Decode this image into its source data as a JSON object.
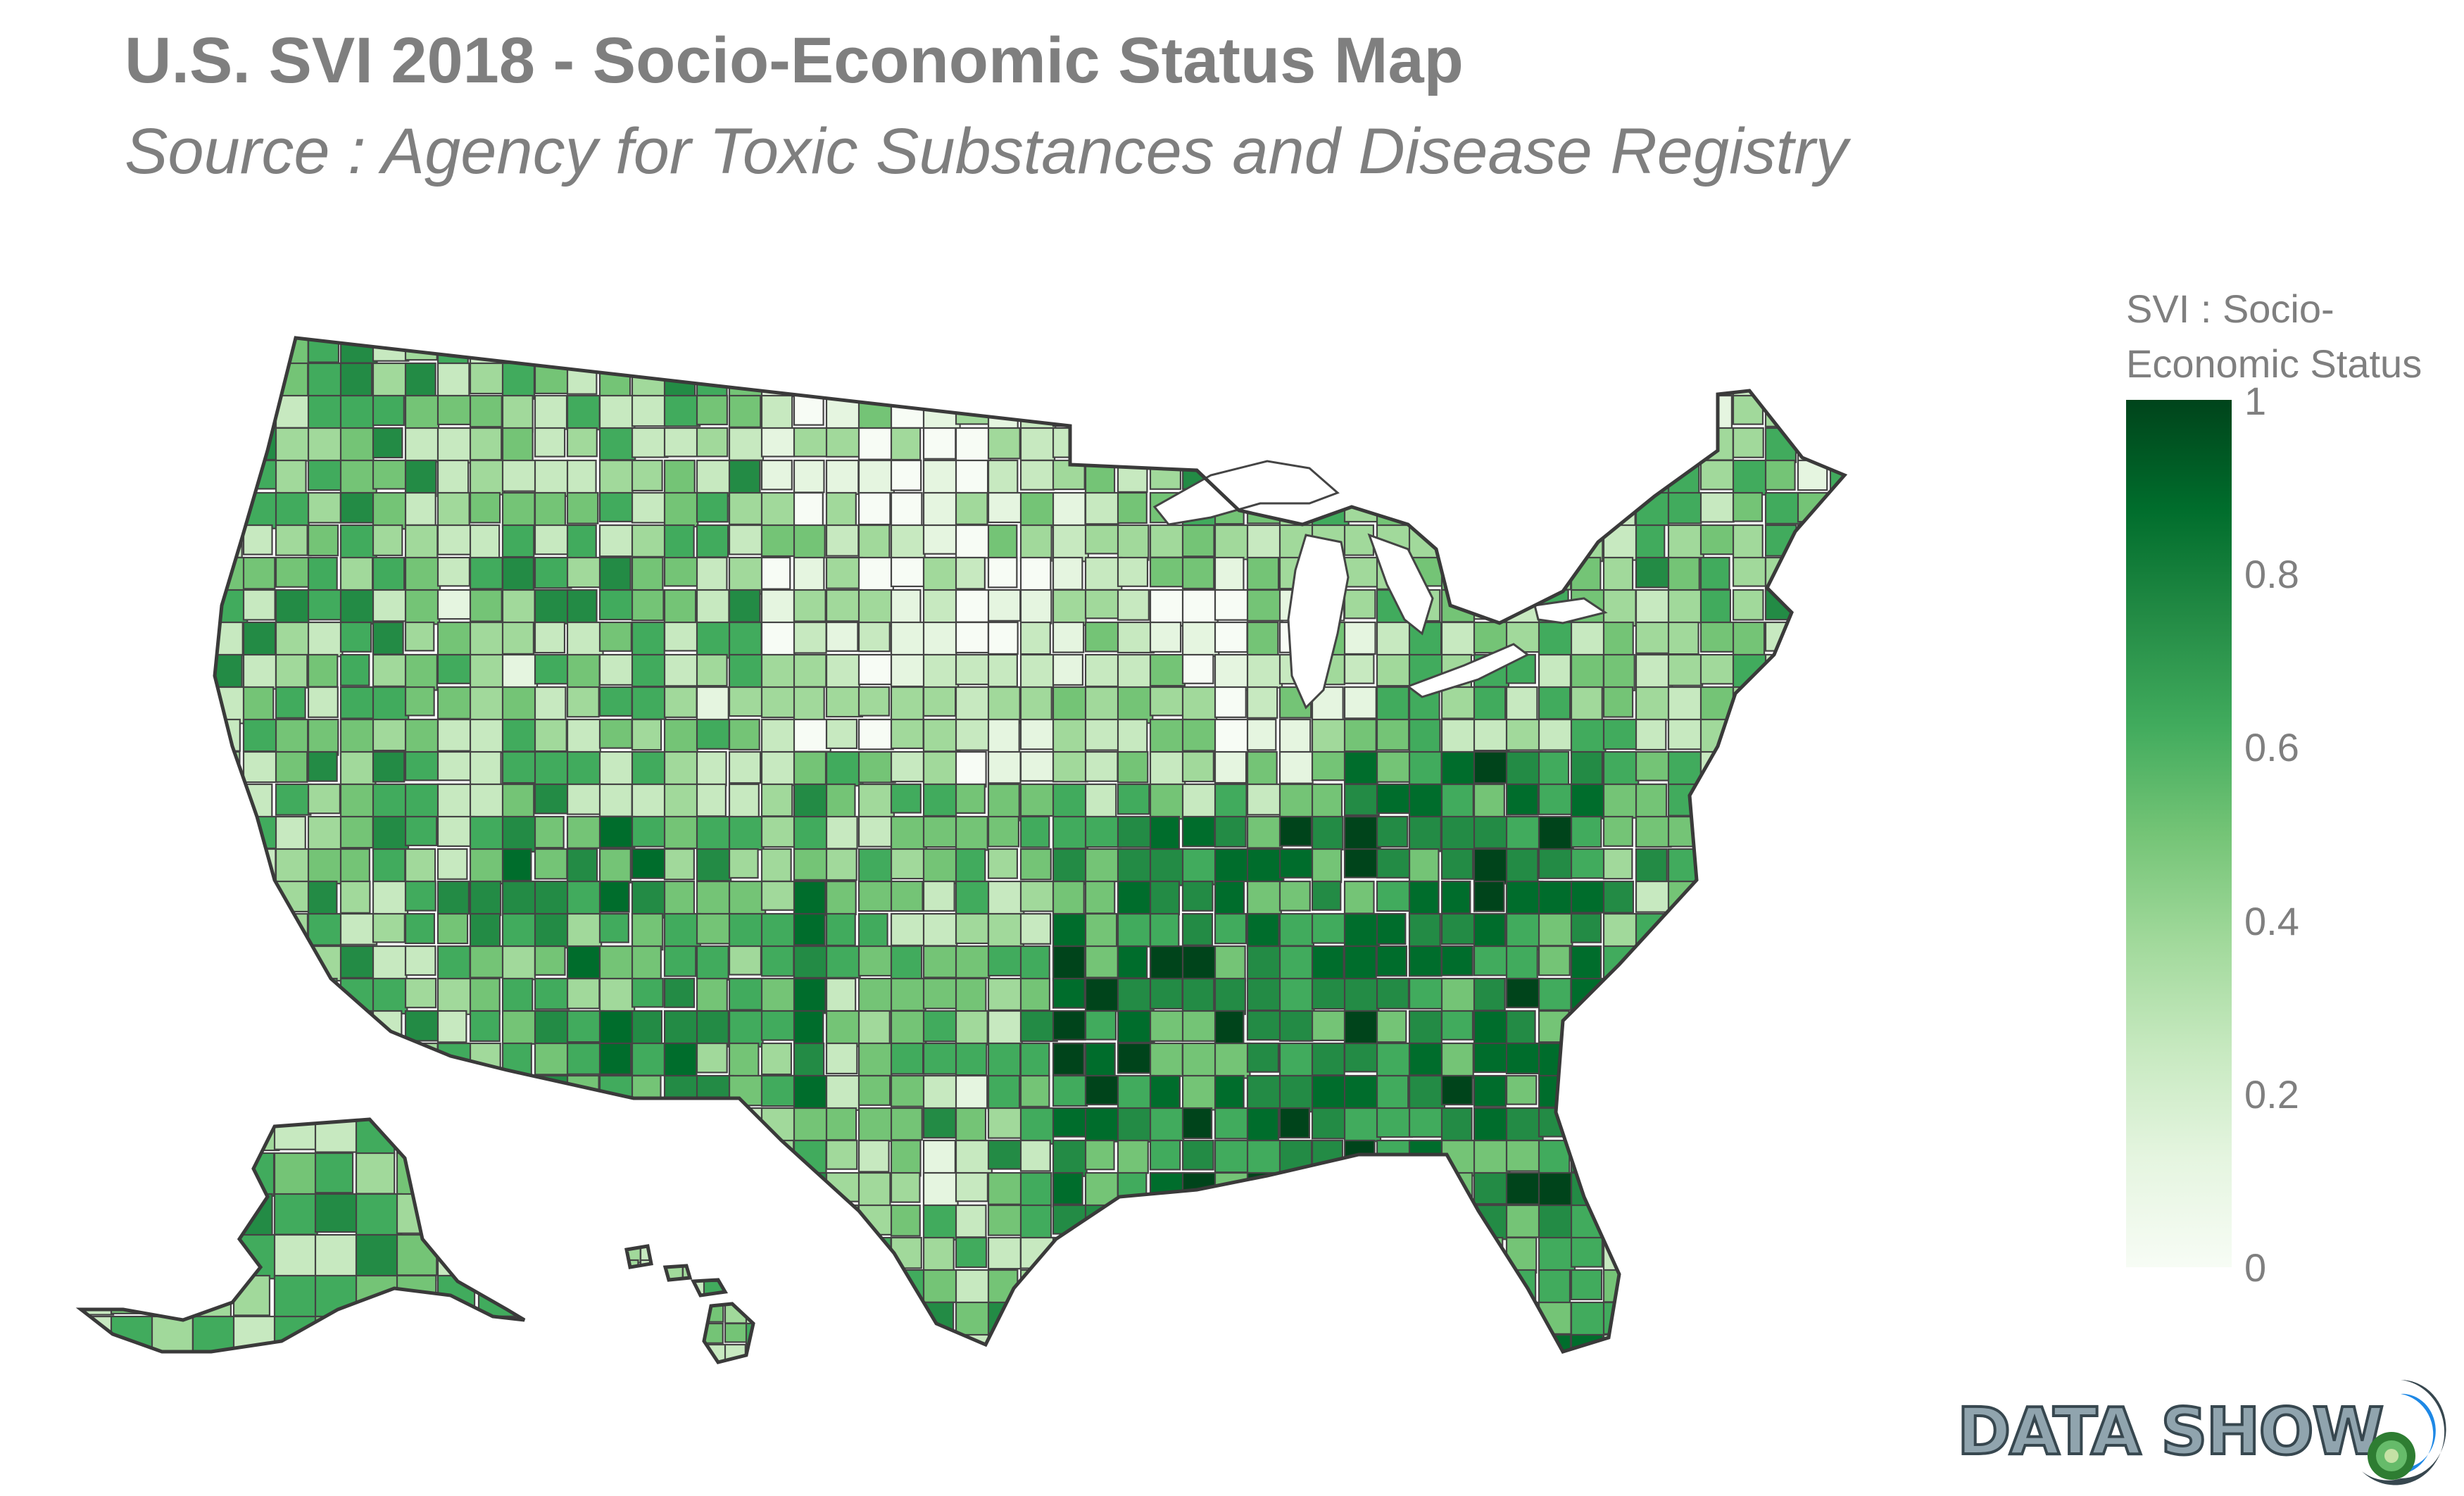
{
  "header": {
    "title": "U.S. SVI 2018 - Socio-Economic Status Map",
    "subtitle": "Source : Agency for Toxic Substances and Disease Registry"
  },
  "chart_data": {
    "type": "choropleth",
    "geography": "US counties",
    "title": "U.S. SVI 2018 - Socio-Economic Status Map",
    "subtitle": "Source : Agency for Toxic Substances and Disease Registry",
    "colorscale": "Greens",
    "colorbar": {
      "title_lines": [
        "SVI : Socio-",
        "Economic Status"
      ],
      "range": [
        0,
        1
      ],
      "ticks": [
        0,
        0.2,
        0.4,
        0.6,
        0.8,
        1
      ],
      "tick_labels": [
        "0",
        "0.2",
        "0.4",
        "0.6",
        "0.8",
        "1"
      ],
      "placement": "right",
      "colors": [
        "#f7fcf5",
        "#e5f5e0",
        "#c7e9c0",
        "#a1d99b",
        "#74c476",
        "#41ab5d",
        "#238b45",
        "#006d2c",
        "#00441b"
      ]
    },
    "border_color": "#444444"
  },
  "logo": {
    "text": "DATA SHOW"
  }
}
